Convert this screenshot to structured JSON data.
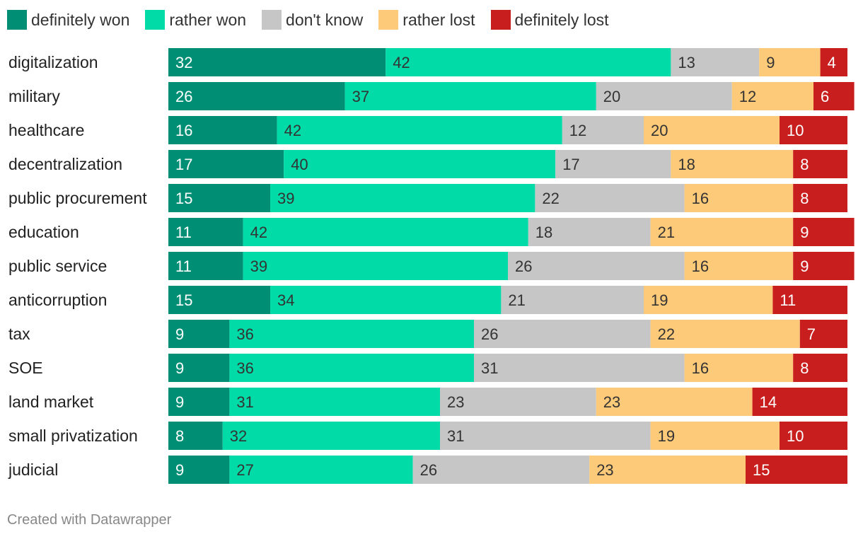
{
  "chart_data": {
    "type": "bar",
    "orientation": "horizontal",
    "stacked": true,
    "categories": [
      "digitalization",
      "military",
      "healthcare",
      "decentralization",
      "public procurement",
      "education",
      "public service",
      "anticorruption",
      "tax",
      "SOE",
      "land market",
      "small privatization",
      "judicial"
    ],
    "series": [
      {
        "name": "definitely won",
        "color": "#008f75",
        "values": [
          32,
          26,
          16,
          17,
          15,
          11,
          11,
          15,
          9,
          9,
          9,
          8,
          9
        ]
      },
      {
        "name": "rather won",
        "color": "#00dba8",
        "values": [
          42,
          37,
          42,
          40,
          39,
          42,
          39,
          34,
          36,
          36,
          31,
          32,
          27
        ]
      },
      {
        "name": "don't know",
        "color": "#c6c6c6",
        "values": [
          13,
          20,
          12,
          17,
          22,
          18,
          26,
          21,
          26,
          31,
          23,
          31,
          26
        ]
      },
      {
        "name": "rather lost",
        "color": "#fdca79",
        "values": [
          9,
          12,
          20,
          18,
          16,
          21,
          16,
          19,
          22,
          16,
          23,
          19,
          23
        ]
      },
      {
        "name": "definitely lost",
        "color": "#c91e1e",
        "values": [
          4,
          6,
          10,
          8,
          8,
          9,
          9,
          11,
          7,
          8,
          14,
          10,
          15
        ]
      }
    ],
    "xlim": [
      0,
      100
    ],
    "legend_position": "top-left",
    "grid": false
  },
  "footer": {
    "credit": "Created with Datawrapper"
  }
}
